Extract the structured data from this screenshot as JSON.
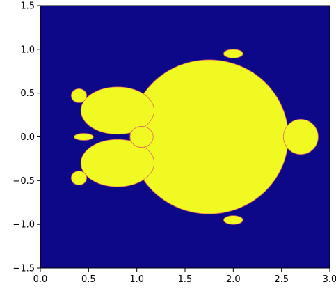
{
  "chart_data": {
    "type": "heatmap",
    "title": "",
    "xlabel": "",
    "ylabel": "",
    "xlim": [
      0.0,
      3.0
    ],
    "ylim": [
      -1.5,
      1.5
    ],
    "x_ticks": [
      {
        "value": 0.0,
        "label": "0.0"
      },
      {
        "value": 0.5,
        "label": "0.5"
      },
      {
        "value": 1.0,
        "label": "1.0"
      },
      {
        "value": 1.5,
        "label": "1.5"
      },
      {
        "value": 2.0,
        "label": "2.0"
      },
      {
        "value": 2.5,
        "label": "2.5"
      },
      {
        "value": 3.0,
        "label": "3.0"
      }
    ],
    "y_ticks": [
      {
        "value": 1.5,
        "label": "1.5"
      },
      {
        "value": 1.0,
        "label": "1.0"
      },
      {
        "value": 0.5,
        "label": "0.5"
      },
      {
        "value": 0.0,
        "label": "0.0"
      },
      {
        "value": -0.5,
        "label": "−0.5"
      },
      {
        "value": -1.0,
        "label": "−1.0"
      },
      {
        "value": -1.5,
        "label": "−1.5"
      }
    ],
    "colors": {
      "outside": "#0d0887",
      "inside": "#f0f921",
      "edge": "#e16462"
    },
    "regions": [
      {
        "name": "main-body",
        "cx": 1.75,
        "cy": 0.0,
        "rx": 0.82,
        "ry": 0.88
      },
      {
        "name": "upper-left-lobe",
        "cx": 0.8,
        "cy": 0.3,
        "rx": 0.38,
        "ry": 0.27
      },
      {
        "name": "lower-left-lobe",
        "cx": 0.8,
        "cy": -0.3,
        "rx": 0.38,
        "ry": 0.27
      },
      {
        "name": "right-lobe",
        "cx": 2.7,
        "cy": 0.0,
        "rx": 0.18,
        "ry": 0.2
      },
      {
        "name": "top-bulb",
        "cx": 2.0,
        "cy": 0.95,
        "rx": 0.1,
        "ry": 0.05
      },
      {
        "name": "bottom-bulb",
        "cx": 2.0,
        "cy": -0.95,
        "rx": 0.1,
        "ry": 0.05
      },
      {
        "name": "upper-left-bulb",
        "cx": 0.4,
        "cy": 0.47,
        "rx": 0.08,
        "ry": 0.08
      },
      {
        "name": "lower-left-bulb",
        "cx": 0.4,
        "cy": -0.47,
        "rx": 0.08,
        "ry": 0.08
      },
      {
        "name": "left-tip",
        "cx": 0.45,
        "cy": 0.0,
        "rx": 0.1,
        "ry": 0.04
      },
      {
        "name": "neck",
        "cx": 1.05,
        "cy": 0.0,
        "rx": 0.12,
        "ry": 0.12
      }
    ]
  }
}
